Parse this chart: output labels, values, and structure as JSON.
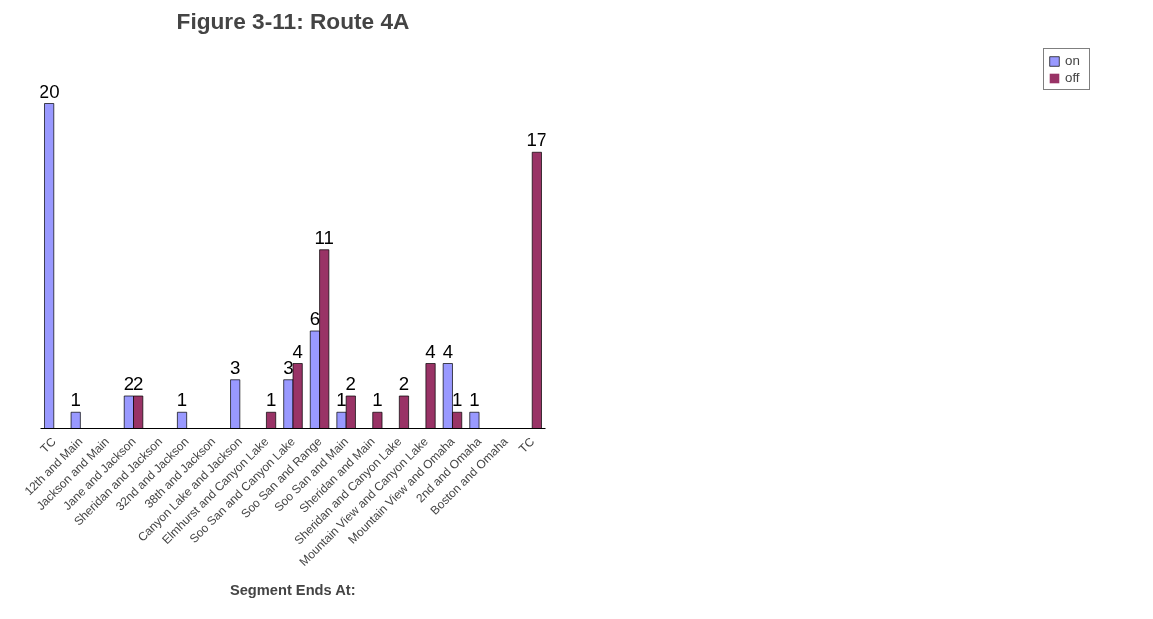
{
  "chart_data": {
    "type": "bar",
    "title": "Figure 3-11: Route 4A",
    "xlabel": "Segment Ends At:",
    "categories": [
      "TC",
      "12th and Main",
      "Jackson and Main",
      "Jane and Jackson",
      "Sheridan and Jackson",
      "32nd and Jackson",
      "38th and Jackson",
      "Canyon Lake and Jackson",
      "Elmhurst and Canyon Lake",
      "Soo San and Canyon Lake",
      "Soo San and Range",
      "Soo San and Main",
      "Sheridan and Main",
      "Sheridan and Canyon Lake",
      "Mountain View and Canyon Lake",
      "Mountain View and Omaha",
      "2nd and Omaha",
      "Boston and Omaha",
      "TC"
    ],
    "series": [
      {
        "name": "on",
        "color": "#9999ff",
        "values": [
          20,
          1,
          0,
          2,
          0,
          1,
          0,
          3,
          0,
          3,
          6,
          1,
          0,
          0,
          0,
          4,
          1,
          0,
          0
        ],
        "value_labels": [
          "20",
          "1",
          null,
          "2",
          null,
          "1",
          null,
          "3",
          null,
          "3",
          "6",
          "1",
          null,
          null,
          null,
          "4",
          "1",
          null,
          null
        ]
      },
      {
        "name": "off",
        "color": "#993366",
        "values": [
          0,
          0,
          0,
          2,
          0,
          0,
          0,
          0,
          1,
          4,
          11,
          2,
          1,
          2,
          4,
          1,
          0,
          0,
          17
        ],
        "value_labels": [
          null,
          null,
          null,
          "2",
          null,
          null,
          null,
          null,
          "1",
          "4",
          "11",
          "2",
          "1",
          "2",
          "4",
          "1",
          null,
          null,
          "17"
        ]
      }
    ],
    "legend": "right",
    "grid": false,
    "tick_labels": "x"
  }
}
